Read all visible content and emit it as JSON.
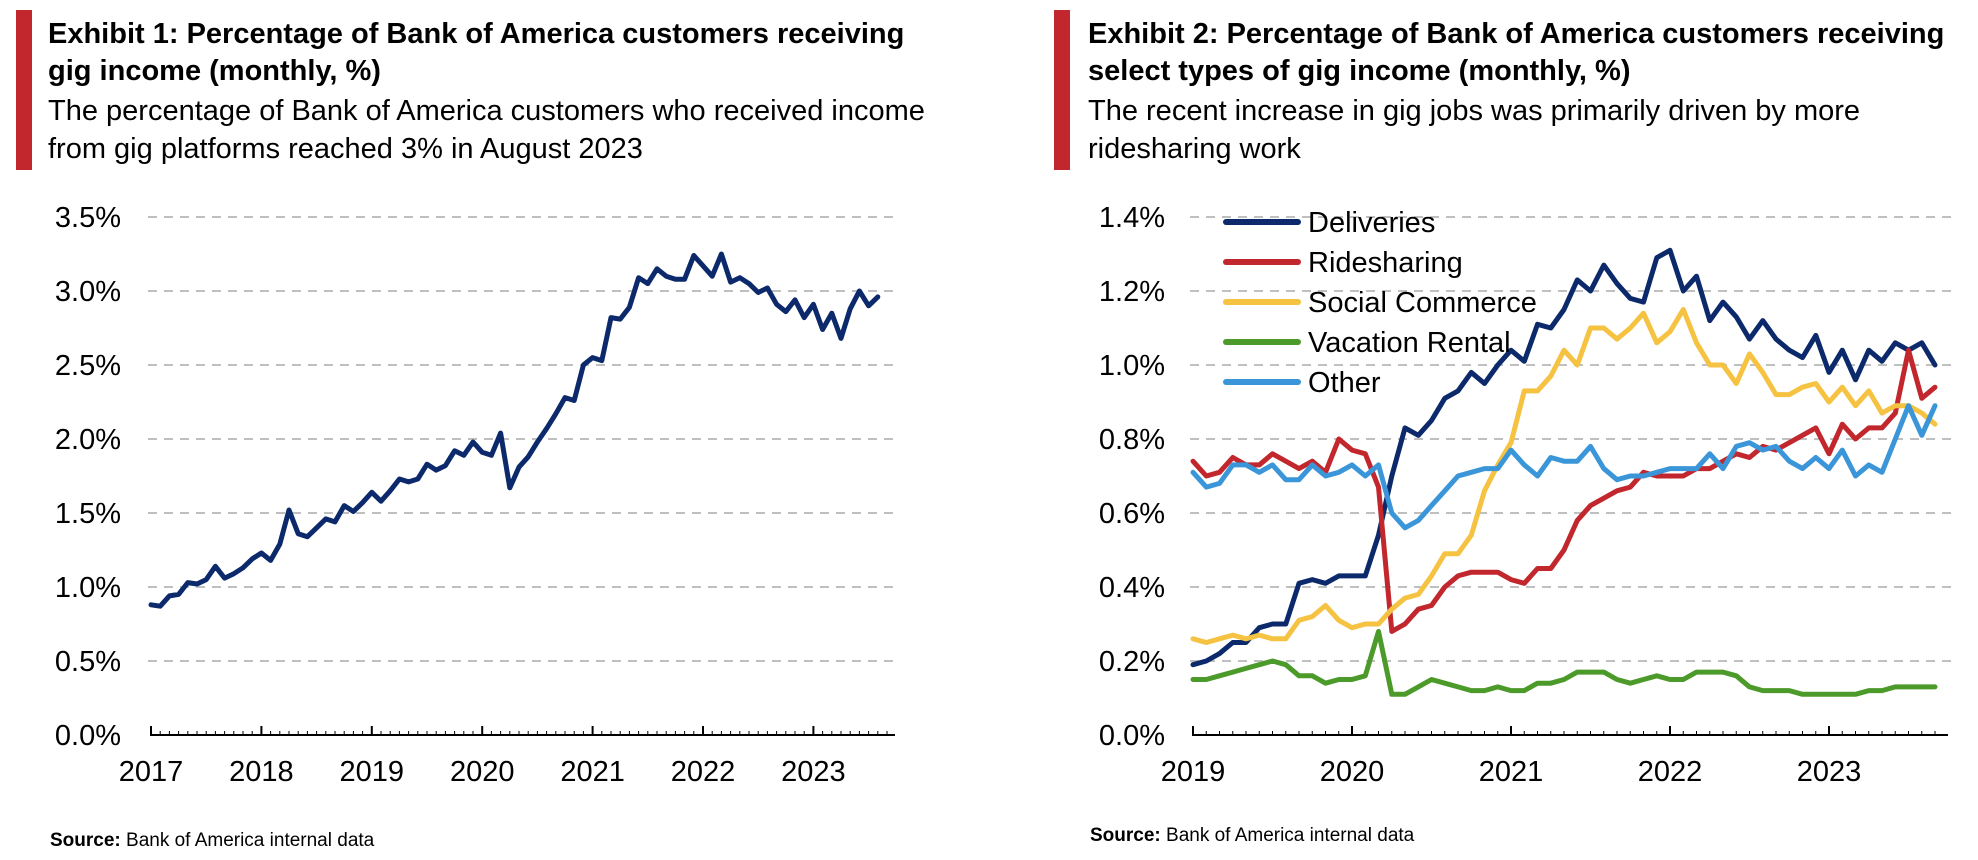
{
  "colors": {
    "accent": "#c1272d",
    "grid": "#bfbfbf",
    "deliveries": "#0c2a6b",
    "ridesharing": "#c1272d",
    "social_commerce": "#f5c242",
    "vacation_rental": "#4c9a2a",
    "other": "#3a96d8"
  },
  "exhibit1": {
    "title": "Exhibit 1: Percentage of Bank of America customers receiving gig income (monthly, %)",
    "subtitle": "The percentage of Bank of America customers who received income from gig platforms reached 3% in August 2023",
    "source_label": "Source:",
    "source_text": "Bank of America internal data"
  },
  "exhibit2": {
    "title": "Exhibit 2: Percentage of Bank of America customers receiving select types of gig income (monthly, %)",
    "subtitle": "The recent increase in gig jobs was primarily driven by more ridesharing work",
    "source_label": "Source:",
    "source_text": "Bank of America internal data"
  },
  "chart_data": [
    {
      "type": "line",
      "x_start": "2017-01",
      "x_ticks": [
        "2017",
        "2018",
        "2019",
        "2020",
        "2021",
        "2022",
        "2023"
      ],
      "y_ticks": [
        "0.0%",
        "0.5%",
        "1.0%",
        "1.5%",
        "2.0%",
        "2.5%",
        "3.0%",
        "3.5%"
      ],
      "ylim": [
        0,
        3.5
      ],
      "grid": true,
      "legend": "none",
      "series": [
        {
          "color": "#0c2a6b",
          "values": [
            0.88,
            0.87,
            0.94,
            0.95,
            1.03,
            1.02,
            1.05,
            1.14,
            1.06,
            1.09,
            1.13,
            1.19,
            1.23,
            1.18,
            1.29,
            1.52,
            1.36,
            1.34,
            1.4,
            1.46,
            1.44,
            1.55,
            1.51,
            1.57,
            1.64,
            1.58,
            1.65,
            1.73,
            1.71,
            1.73,
            1.83,
            1.79,
            1.82,
            1.92,
            1.89,
            1.98,
            1.91,
            1.89,
            2.04,
            1.67,
            1.81,
            1.88,
            1.98,
            2.07,
            2.17,
            2.28,
            2.26,
            2.5,
            2.55,
            2.53,
            2.82,
            2.81,
            2.89,
            3.09,
            3.05,
            3.15,
            3.1,
            3.08,
            3.08,
            3.24,
            3.17,
            3.1,
            3.25,
            3.06,
            3.09,
            3.05,
            2.99,
            3.02,
            2.91,
            2.86,
            2.94,
            2.82,
            2.91,
            2.74,
            2.85,
            2.68,
            2.88,
            3.0,
            2.9,
            2.96
          ]
        }
      ]
    },
    {
      "type": "line",
      "x_start": "2019-01",
      "x_ticks": [
        "2019",
        "2020",
        "2021",
        "2022",
        "2023"
      ],
      "y_ticks": [
        "0.0%",
        "0.2%",
        "0.4%",
        "0.6%",
        "0.8%",
        "1.0%",
        "1.2%",
        "1.4%"
      ],
      "ylim": [
        0,
        1.4
      ],
      "grid": true,
      "legend": "top-left",
      "series": [
        {
          "name": "Deliveries",
          "color": "#0c2a6b",
          "values": [
            0.19,
            0.2,
            0.22,
            0.25,
            0.25,
            0.29,
            0.3,
            0.3,
            0.41,
            0.42,
            0.41,
            0.43,
            0.43,
            0.43,
            0.54,
            0.7,
            0.83,
            0.81,
            0.85,
            0.91,
            0.93,
            0.98,
            0.95,
            1.0,
            1.04,
            1.01,
            1.11,
            1.1,
            1.15,
            1.23,
            1.2,
            1.27,
            1.22,
            1.18,
            1.17,
            1.29,
            1.31,
            1.2,
            1.24,
            1.12,
            1.17,
            1.13,
            1.07,
            1.12,
            1.07,
            1.04,
            1.02,
            1.08,
            0.98,
            1.04,
            0.96,
            1.04,
            1.01,
            1.06,
            1.04,
            1.06,
            1.0
          ]
        },
        {
          "name": "Ridesharing",
          "color": "#c1272d",
          "values": [
            0.74,
            0.7,
            0.71,
            0.75,
            0.73,
            0.73,
            0.76,
            0.74,
            0.72,
            0.74,
            0.71,
            0.8,
            0.77,
            0.76,
            0.67,
            0.28,
            0.3,
            0.34,
            0.35,
            0.4,
            0.43,
            0.44,
            0.44,
            0.44,
            0.42,
            0.41,
            0.45,
            0.45,
            0.5,
            0.58,
            0.62,
            0.64,
            0.66,
            0.67,
            0.71,
            0.7,
            0.7,
            0.7,
            0.72,
            0.72,
            0.74,
            0.76,
            0.75,
            0.78,
            0.77,
            0.79,
            0.81,
            0.83,
            0.76,
            0.84,
            0.8,
            0.83,
            0.83,
            0.87,
            1.04,
            0.91,
            0.94
          ]
        },
        {
          "name": "Social Commerce",
          "color": "#f5c242",
          "values": [
            0.26,
            0.25,
            0.26,
            0.27,
            0.26,
            0.27,
            0.26,
            0.26,
            0.31,
            0.32,
            0.35,
            0.31,
            0.29,
            0.3,
            0.3,
            0.34,
            0.37,
            0.38,
            0.43,
            0.49,
            0.49,
            0.54,
            0.66,
            0.73,
            0.79,
            0.93,
            0.93,
            0.97,
            1.04,
            1.0,
            1.1,
            1.1,
            1.07,
            1.1,
            1.14,
            1.06,
            1.09,
            1.15,
            1.06,
            1.0,
            1.0,
            0.95,
            1.03,
            0.98,
            0.92,
            0.92,
            0.94,
            0.95,
            0.9,
            0.94,
            0.89,
            0.93,
            0.87,
            0.89,
            0.89,
            0.87,
            0.84
          ]
        },
        {
          "name": "Vacation Rental",
          "color": "#4c9a2a",
          "values": [
            0.15,
            0.15,
            0.16,
            0.17,
            0.18,
            0.19,
            0.2,
            0.19,
            0.16,
            0.16,
            0.14,
            0.15,
            0.15,
            0.16,
            0.28,
            0.11,
            0.11,
            0.13,
            0.15,
            0.14,
            0.13,
            0.12,
            0.12,
            0.13,
            0.12,
            0.12,
            0.14,
            0.14,
            0.15,
            0.17,
            0.17,
            0.17,
            0.15,
            0.14,
            0.15,
            0.16,
            0.15,
            0.15,
            0.17,
            0.17,
            0.17,
            0.16,
            0.13,
            0.12,
            0.12,
            0.12,
            0.11,
            0.11,
            0.11,
            0.11,
            0.11,
            0.12,
            0.12,
            0.13,
            0.13,
            0.13,
            0.13
          ]
        },
        {
          "name": "Other",
          "color": "#3a96d8",
          "values": [
            0.71,
            0.67,
            0.68,
            0.73,
            0.73,
            0.71,
            0.73,
            0.69,
            0.69,
            0.73,
            0.7,
            0.71,
            0.73,
            0.7,
            0.73,
            0.6,
            0.56,
            0.58,
            0.62,
            0.66,
            0.7,
            0.71,
            0.72,
            0.72,
            0.77,
            0.73,
            0.7,
            0.75,
            0.74,
            0.74,
            0.78,
            0.72,
            0.69,
            0.7,
            0.7,
            0.71,
            0.72,
            0.72,
            0.72,
            0.76,
            0.72,
            0.78,
            0.79,
            0.77,
            0.78,
            0.74,
            0.72,
            0.75,
            0.72,
            0.77,
            0.7,
            0.73,
            0.71,
            0.8,
            0.89,
            0.81,
            0.89
          ]
        }
      ]
    }
  ]
}
